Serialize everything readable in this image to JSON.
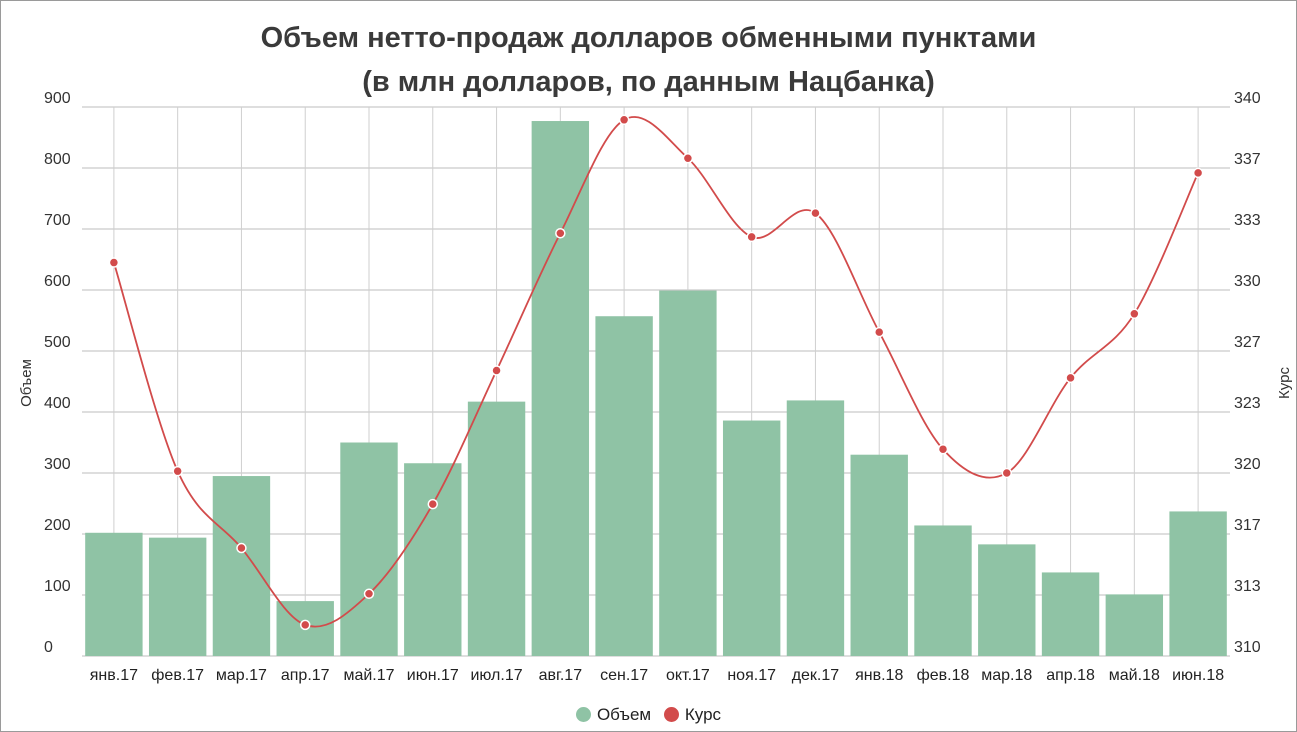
{
  "chart_data": {
    "type": "bar",
    "title": "Объем нетто-продаж долларов обменными пунктами",
    "subtitle": "(в млн долларов, по данным Нацбанка)",
    "categories": [
      "янв.17",
      "фев.17",
      "мар.17",
      "апр.17",
      "май.17",
      "июн.17",
      "июл.17",
      "авг.17",
      "сен.17",
      "окт.17",
      "ноя.17",
      "дек.17",
      "янв.18",
      "фев.18",
      "мар.18",
      "апр.18",
      "май.18",
      "июн.18"
    ],
    "ylabel": "Объем",
    "y2label": "Курс",
    "ylim": [
      0,
      900
    ],
    "y2lim": [
      310,
      340
    ],
    "yticks": [
      "0",
      "100",
      "200",
      "300",
      "400",
      "500",
      "600",
      "700",
      "800",
      "900"
    ],
    "y2ticks": [
      "310",
      "313",
      "317",
      "320",
      "323",
      "327",
      "330",
      "333",
      "337",
      "340"
    ],
    "grid": true,
    "legend_position": "bottom",
    "series": [
      {
        "name": "Объем",
        "type": "bar",
        "axis": "left",
        "color": "#8fc3a5",
        "values": [
          202,
          194,
          295,
          90,
          350,
          316,
          417,
          877,
          557,
          599,
          386,
          419,
          330,
          214,
          183,
          137,
          101,
          237
        ]
      },
      {
        "name": "Курс",
        "type": "line",
        "axis": "right",
        "color": "#d24b4b",
        "values": [
          331.5,
          320.1,
          315.9,
          311.7,
          313.4,
          318.3,
          325.6,
          333.1,
          339.3,
          337.2,
          332.9,
          334.2,
          327.7,
          321.3,
          320.0,
          325.2,
          328.7,
          336.4
        ]
      }
    ]
  }
}
